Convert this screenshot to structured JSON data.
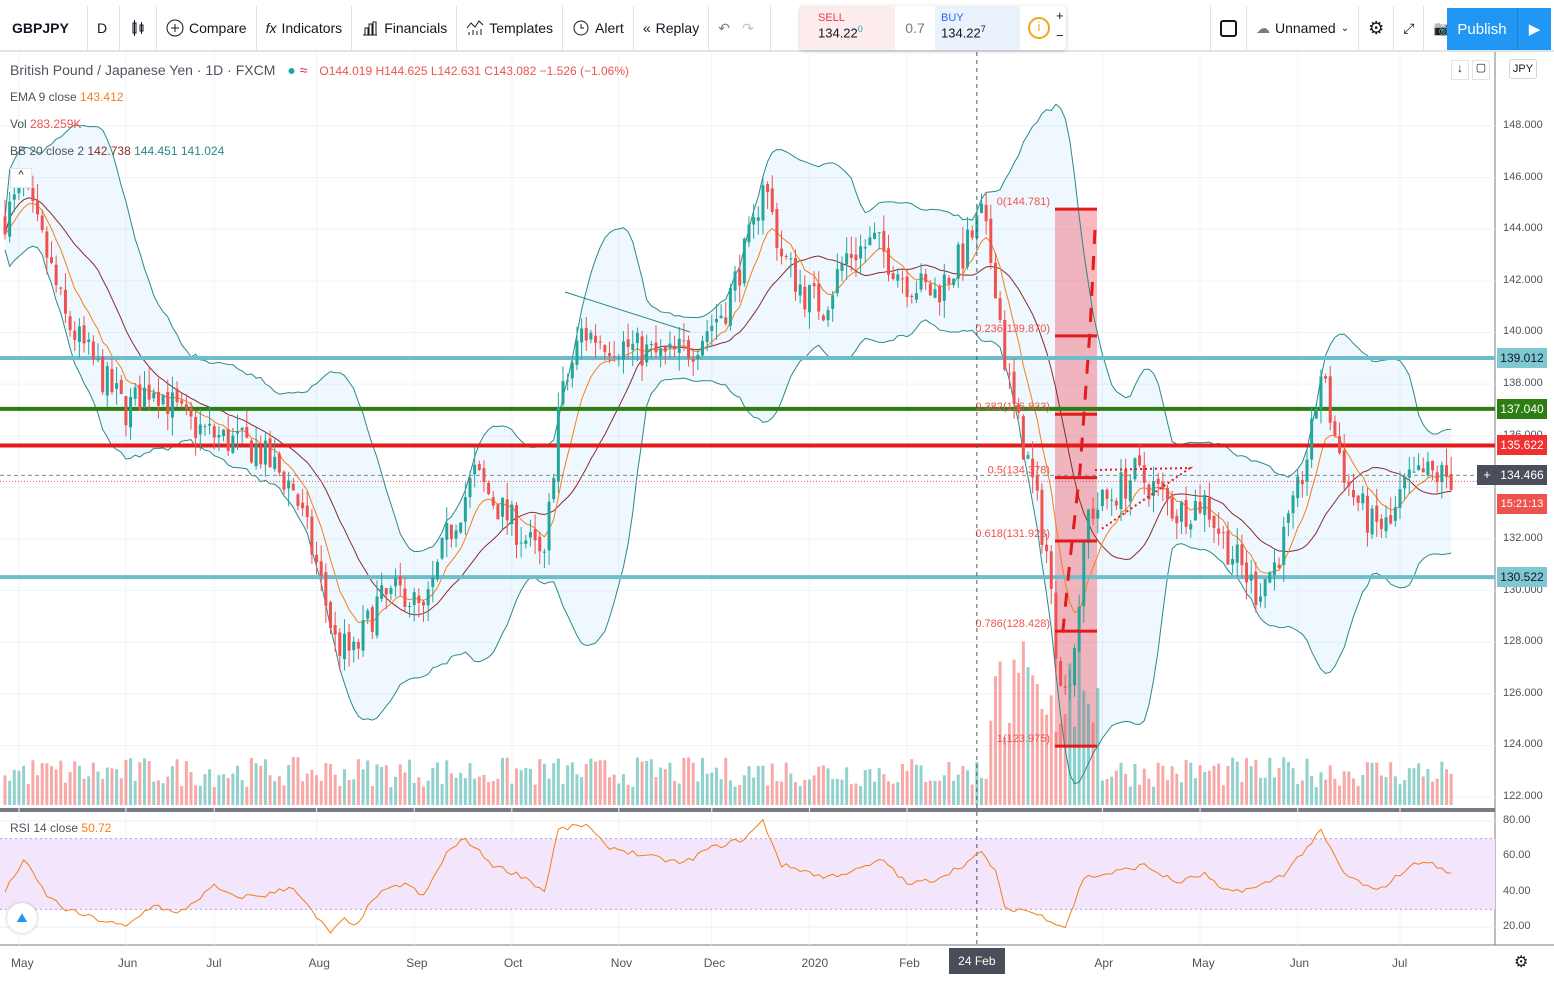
{
  "toolbar": {
    "symbol": "GBPJPY",
    "interval": "D",
    "compare": "Compare",
    "indicators": "Indicators",
    "financials": "Financials",
    "templates": "Templates",
    "alert": "Alert",
    "replay": "Replay",
    "layout_name": "Unnamed",
    "publish": "Publish"
  },
  "trade": {
    "sell_label": "SELL",
    "sell_price": "134.22",
    "sell_sup": "0",
    "spread": "0.7",
    "buy_label": "BUY",
    "buy_price": "134.22",
    "buy_sup": "7",
    "plus": "+",
    "minus": "−"
  },
  "legend": {
    "title": "British Pound / Japanese Yen · 1D · FXCM",
    "ohlc": "O144.019 H144.625 L142.631 C143.082 −1.526 (−1.06%)",
    "ema_label": "EMA 9 close",
    "ema_value": "143.412",
    "vol_label": "Vol",
    "vol_value": "283.259K",
    "bb_label": "BB 20 close 2",
    "bb_mid": "142.738",
    "bb_up": "144.451",
    "bb_low": "141.024",
    "rsi_label": "RSI 14 close",
    "rsi_value": "50.72"
  },
  "currency": "JPY",
  "price_axis": [
    "148.000",
    "146.000",
    "144.000",
    "142.000",
    "140.000",
    "138.000",
    "136.000",
    "132.000",
    "130.000",
    "128.000",
    "126.000",
    "124.000",
    "122.000"
  ],
  "rsi_axis": [
    "80.00",
    "60.00",
    "40.00",
    "20.00"
  ],
  "price_tags": [
    {
      "value": "139.012",
      "price": 139.012,
      "color": "#7ec8d3",
      "line": "#6fbccb"
    },
    {
      "value": "137.040",
      "price": 137.04,
      "color": "#2e7d12",
      "line": "#2e7d12"
    },
    {
      "value": "135.622",
      "price": 135.622,
      "color": "#f23030",
      "line": "#e31b1b"
    },
    {
      "value": "130.522",
      "price": 130.522,
      "color": "#7ec8d3",
      "line": "#6fbccb"
    }
  ],
  "current": {
    "price": 134.466,
    "label": "134.466",
    "countdown": "15:21:13"
  },
  "fib": [
    {
      "label": "0(144.781)",
      "price": 144.781
    },
    {
      "label": "0.236(139.870)",
      "price": 139.87
    },
    {
      "label": "0.382(136.833)",
      "price": 136.833
    },
    {
      "label": "0.5(134.378)",
      "price": 134.378
    },
    {
      "label": "0.618(131.923)",
      "price": 131.923
    },
    {
      "label": "0.786(128.428)",
      "price": 128.428
    },
    {
      "label": "1(123.975)",
      "price": 123.975
    }
  ],
  "time_axis": [
    {
      "label": "May",
      "day": 3
    },
    {
      "label": "Jun",
      "day": 26
    },
    {
      "label": "Jul",
      "day": 45
    },
    {
      "label": "Aug",
      "day": 67
    },
    {
      "label": "Sep",
      "day": 88
    },
    {
      "label": "Oct",
      "day": 109
    },
    {
      "label": "Nov",
      "day": 132
    },
    {
      "label": "Dec",
      "day": 152
    },
    {
      "label": "2020",
      "day": 173
    },
    {
      "label": "Feb",
      "day": 194
    },
    {
      "label": "Apr",
      "day": 236
    },
    {
      "label": "May",
      "day": 257
    },
    {
      "label": "Jun",
      "day": 278
    },
    {
      "label": "Jul",
      "day": 300
    }
  ],
  "crosshair": {
    "label": "24 Feb '20",
    "day": 209
  },
  "chart_data": {
    "type": "candlestick",
    "symbol": "GBPJPY",
    "ylim": [
      122,
      148
    ],
    "rsi_ylim": [
      15,
      82
    ],
    "close_keypoints": [
      [
        0,
        144.5
      ],
      [
        4,
        145.5
      ],
      [
        9,
        143
      ],
      [
        13,
        140.5
      ],
      [
        22,
        138
      ],
      [
        26,
        137
      ],
      [
        32,
        138
      ],
      [
        39,
        136.5
      ],
      [
        45,
        136
      ],
      [
        54,
        135.5
      ],
      [
        62,
        134
      ],
      [
        67,
        131
      ],
      [
        71,
        128
      ],
      [
        75,
        127.5
      ],
      [
        80,
        129.5
      ],
      [
        86,
        130
      ],
      [
        90,
        129
      ],
      [
        95,
        132
      ],
      [
        101,
        134.5
      ],
      [
        105,
        133.5
      ],
      [
        112,
        132
      ],
      [
        116,
        131
      ],
      [
        119,
        137
      ],
      [
        124,
        140
      ],
      [
        133,
        139.5
      ],
      [
        142,
        139
      ],
      [
        148,
        139.5
      ],
      [
        155,
        141
      ],
      [
        161,
        144
      ],
      [
        163,
        146
      ],
      [
        167,
        143
      ],
      [
        172,
        141.5
      ],
      [
        176,
        141
      ],
      [
        181,
        143
      ],
      [
        187,
        143.5
      ],
      [
        194,
        142
      ],
      [
        200,
        141.5
      ],
      [
        206,
        143
      ],
      [
        210,
        144.5
      ],
      [
        213,
        142
      ],
      [
        215,
        139
      ],
      [
        217,
        137
      ],
      [
        220,
        135
      ],
      [
        224,
        131.5
      ],
      [
        226,
        128
      ],
      [
        228,
        126
      ],
      [
        230,
        128
      ],
      [
        233,
        133
      ],
      [
        237,
        133.5
      ],
      [
        243,
        134.5
      ],
      [
        247,
        134
      ],
      [
        252,
        133
      ],
      [
        258,
        133.5
      ],
      [
        262,
        132
      ],
      [
        269,
        130
      ],
      [
        273,
        131
      ],
      [
        277,
        133
      ],
      [
        281,
        136
      ],
      [
        283,
        138.5
      ],
      [
        286,
        136
      ],
      [
        289,
        134
      ],
      [
        294,
        132.5
      ],
      [
        298,
        132.5
      ],
      [
        301,
        134
      ],
      [
        305,
        134.5
      ],
      [
        311,
        134.4
      ]
    ],
    "rsi_keypoints": [
      [
        0,
        40
      ],
      [
        4,
        58
      ],
      [
        9,
        38
      ],
      [
        13,
        30
      ],
      [
        19,
        25
      ],
      [
        26,
        20
      ],
      [
        32,
        33
      ],
      [
        37,
        27
      ],
      [
        45,
        43
      ],
      [
        49,
        37
      ],
      [
        56,
        38
      ],
      [
        62,
        43
      ],
      [
        67,
        25
      ],
      [
        70,
        17
      ],
      [
        73,
        24
      ],
      [
        75,
        20
      ],
      [
        80,
        38
      ],
      [
        86,
        45
      ],
      [
        90,
        37
      ],
      [
        95,
        62
      ],
      [
        99,
        70
      ],
      [
        105,
        55
      ],
      [
        112,
        48
      ],
      [
        116,
        40
      ],
      [
        119,
        75
      ],
      [
        125,
        78
      ],
      [
        129,
        66
      ],
      [
        138,
        60
      ],
      [
        146,
        56
      ],
      [
        151,
        64
      ],
      [
        159,
        70
      ],
      [
        163,
        80
      ],
      [
        167,
        55
      ],
      [
        172,
        52
      ],
      [
        176,
        48
      ],
      [
        183,
        52
      ],
      [
        189,
        58
      ],
      [
        194,
        44
      ],
      [
        200,
        47
      ],
      [
        206,
        55
      ],
      [
        210,
        62
      ],
      [
        213,
        52
      ],
      [
        215,
        30
      ],
      [
        219,
        30
      ],
      [
        224,
        25
      ],
      [
        228,
        20
      ],
      [
        232,
        48
      ],
      [
        237,
        50
      ],
      [
        245,
        55
      ],
      [
        252,
        45
      ],
      [
        258,
        50
      ],
      [
        262,
        40
      ],
      [
        269,
        42
      ],
      [
        275,
        50
      ],
      [
        280,
        65
      ],
      [
        283,
        74
      ],
      [
        288,
        50
      ],
      [
        295,
        40
      ],
      [
        301,
        52
      ],
      [
        305,
        58
      ],
      [
        311,
        50
      ]
    ]
  }
}
